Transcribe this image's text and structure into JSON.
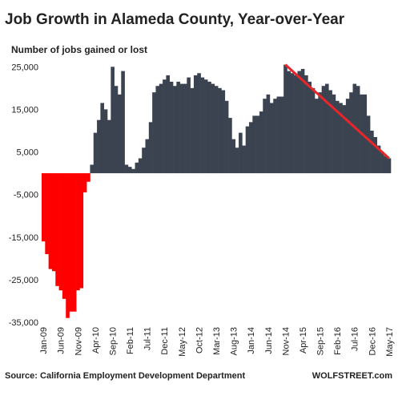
{
  "chart_data": {
    "type": "bar",
    "title": "Job Growth in Alameda County, Year-over-Year",
    "subtitle": "Number of jobs gained or lost",
    "source": "Source: California Employment Development Department",
    "credit": "WOLFSTREET.com",
    "categories": [
      "Jan-09",
      null,
      null,
      null,
      null,
      "Jun-09",
      null,
      null,
      null,
      null,
      "Nov-09",
      null,
      null,
      null,
      null,
      "Apr-10",
      null,
      null,
      null,
      null,
      "Sep-10",
      null,
      null,
      null,
      null,
      "Feb-11",
      null,
      null,
      null,
      null,
      "Jul-11",
      null,
      null,
      null,
      null,
      "Dec-11",
      null,
      null,
      null,
      null,
      "May-12",
      null,
      null,
      null,
      null,
      "Oct-12",
      null,
      null,
      null,
      null,
      "Mar-13",
      null,
      null,
      null,
      null,
      "Aug-13",
      null,
      null,
      null,
      null,
      "Jan-14",
      null,
      null,
      null,
      null,
      "Jun-14",
      null,
      null,
      null,
      null,
      "Nov-14",
      null,
      null,
      null,
      null,
      "Apr-15",
      null,
      null,
      null,
      null,
      "Sep-15",
      null,
      null,
      null,
      null,
      "Feb-16",
      null,
      null,
      null,
      null,
      "Jul-16",
      null,
      null,
      null,
      null,
      "Dec-16",
      null,
      null,
      null,
      null,
      "May-17"
    ],
    "values": [
      -16000,
      -19000,
      -22500,
      -23000,
      -26500,
      -27500,
      -29500,
      -34000,
      -32500,
      -32500,
      -27500,
      -27000,
      -4500,
      -2000,
      2000,
      9500,
      12500,
      16500,
      15000,
      12500,
      25000,
      20500,
      18500,
      24000,
      2000,
      1500,
      1000,
      2500,
      3500,
      6000,
      8000,
      12000,
      19000,
      20500,
      21000,
      22000,
      23000,
      21500,
      20500,
      21500,
      21000,
      21000,
      22500,
      20000,
      23000,
      23500,
      22500,
      22000,
      21500,
      21000,
      20500,
      20000,
      19500,
      17000,
      13000,
      8000,
      6000,
      9500,
      6500,
      11000,
      12000,
      13500,
      13500,
      14500,
      17500,
      18500,
      16500,
      17500,
      18000,
      18000,
      25500,
      24000,
      23500,
      23000,
      24000,
      24500,
      23000,
      21500,
      20000,
      17500,
      19000,
      20500,
      21000,
      19500,
      18500,
      17000,
      16500,
      16000,
      17500,
      19000,
      21000,
      20500,
      18500,
      18500,
      13500,
      10000,
      8500,
      6500,
      5000,
      4000,
      3500
    ],
    "color": "#3b4350",
    "negative_color": "#ff0000",
    "trend_color": "#e8262b",
    "ylim": [
      -35000,
      26000
    ],
    "yticks": [
      {
        "value": 25000,
        "label": "25,000"
      },
      {
        "value": 15000,
        "label": "15,000"
      },
      {
        "value": 5000,
        "label": "5,000"
      },
      {
        "value": -5000,
        "label": "-5,000"
      },
      {
        "value": -15000,
        "label": "-15,000"
      },
      {
        "value": -25000,
        "label": "-25,000"
      },
      {
        "value": -35000,
        "label": "-35,000"
      }
    ],
    "grid": false
  }
}
